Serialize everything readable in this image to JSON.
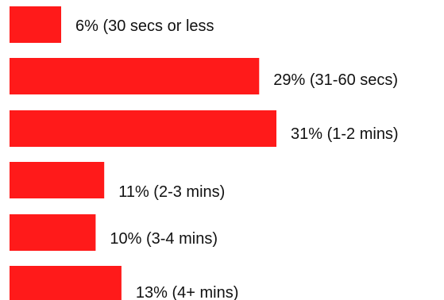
{
  "chart_data": {
    "type": "bar",
    "orientation": "horizontal",
    "title": "",
    "xlabel": "",
    "ylabel": "",
    "grid": false,
    "legend": "none",
    "bar_color": "#ff1a1a",
    "xlim": [
      0,
      31
    ],
    "categories": [
      "(30 secs or less",
      "(31-60 secs)",
      "(1-2 mins)",
      "(2-3 mins)",
      "(3-4 mins)",
      "(4+ mins)"
    ],
    "values": [
      6,
      29,
      31,
      11,
      10,
      13
    ],
    "labels": [
      "6% (30 secs or less",
      "29% (31-60 secs)",
      "31% (1-2 mins)",
      "11% (2-3 mins)",
      "10% (3-4 mins)",
      "13% (4+ mins)"
    ]
  }
}
